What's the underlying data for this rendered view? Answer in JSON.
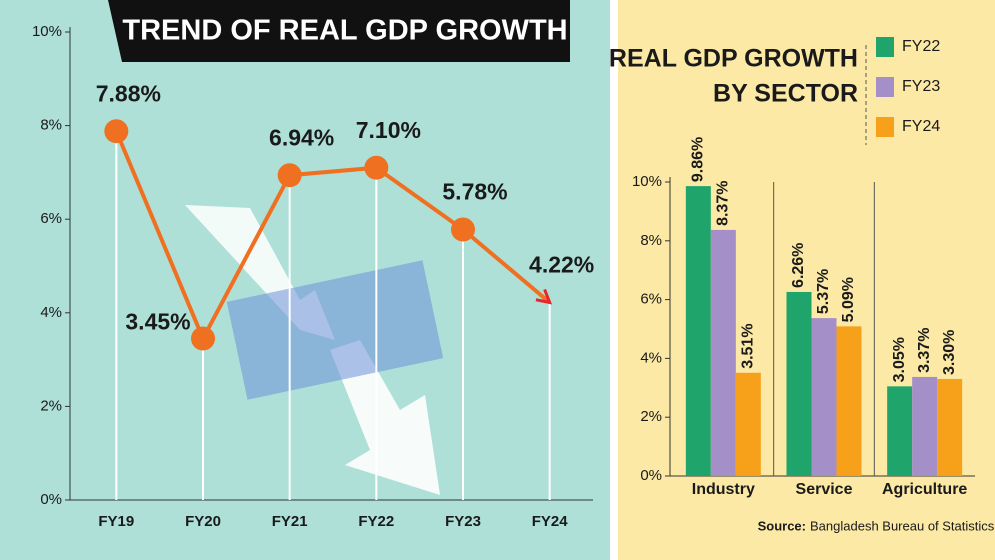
{
  "chart_data": [
    {
      "type": "line",
      "title": "TREND OF REAL GDP GROWTH",
      "categories": [
        "FY19",
        "FY20",
        "FY21",
        "FY22",
        "FY23",
        "FY24"
      ],
      "values": [
        7.88,
        3.45,
        6.94,
        7.1,
        5.78,
        4.22
      ],
      "value_labels": [
        "7.88%",
        "3.45%",
        "6.94%",
        "7.10%",
        "5.78%",
        "4.22%"
      ],
      "color": "#f07021",
      "ylim": [
        0,
        10
      ],
      "yticks": [
        {
          "value": 0,
          "label": "0%"
        },
        {
          "value": 2,
          "label": "2%"
        },
        {
          "value": 4,
          "label": "4%"
        },
        {
          "value": 6,
          "label": "6%"
        },
        {
          "value": 8,
          "label": "8%"
        },
        {
          "value": 10,
          "label": "10%"
        }
      ]
    },
    {
      "type": "bar",
      "title": [
        "REAL GDP GROWTH",
        "BY SECTOR"
      ],
      "categories": [
        "Industry",
        "Service",
        "Agriculture"
      ],
      "series": [
        {
          "name": "FY22",
          "color": "#1fa56b",
          "values": [
            9.86,
            6.26,
            3.05
          ],
          "value_labels": [
            "9.86%",
            "6.26%",
            "3.05%"
          ]
        },
        {
          "name": "FY23",
          "color": "#a58fc8",
          "values": [
            8.37,
            5.37,
            3.37
          ],
          "value_labels": [
            "8.37%",
            "5.37%",
            "3.37%"
          ]
        },
        {
          "name": "FY24",
          "color": "#f7a11a",
          "values": [
            3.51,
            5.09,
            3.3
          ],
          "value_labels": [
            "3.51%",
            "5.09%",
            "3.30%"
          ]
        }
      ],
      "ylim": [
        0,
        10
      ],
      "yticks": [
        {
          "value": 0,
          "label": "0%"
        },
        {
          "value": 2,
          "label": "2%"
        },
        {
          "value": 4,
          "label": "4%"
        },
        {
          "value": 6,
          "label": "6%"
        },
        {
          "value": 8,
          "label": "8%"
        },
        {
          "value": 10,
          "label": "10%"
        }
      ],
      "source": {
        "label": "Source:",
        "text": "Bangladesh Bureau of Statistics"
      }
    }
  ]
}
